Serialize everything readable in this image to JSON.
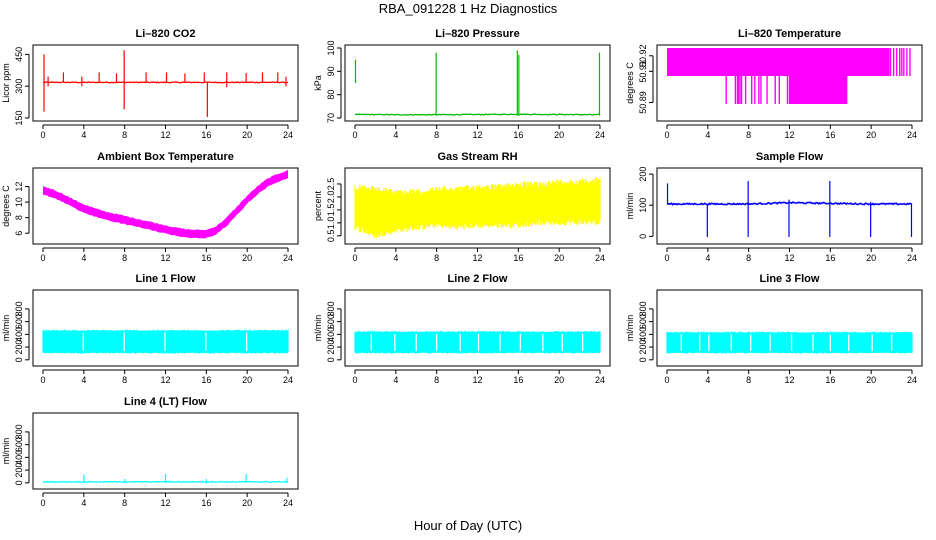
{
  "figure": {
    "title": "RBA_091228  1 Hz Diagnostics",
    "xlabel": "Hour of Day (UTC)"
  },
  "chart_data": [
    {
      "type": "line",
      "title": "Li–820 CO2",
      "ylabel": "Licor ppm",
      "color": "#ff0000",
      "xlim": [
        0,
        24
      ],
      "xticks": [
        "0",
        "4",
        "8",
        "12",
        "16",
        "20",
        "24"
      ],
      "ylim": [
        150,
        480
      ],
      "yticks": [
        {
          "value": 150,
          "label": "150"
        },
        {
          "value": 300,
          "label": "300"
        },
        {
          "value": 450,
          "label": "450"
        }
      ],
      "series": [
        {
          "x": [
            0,
            4,
            8,
            12,
            16,
            20,
            24
          ],
          "values": [
            318,
            318,
            318,
            318,
            318,
            318,
            318
          ]
        }
      ],
      "spikes": [
        {
          "x": 0.1,
          "low": 180,
          "high": 450
        },
        {
          "x": 7.95,
          "low": 190,
          "high": 470
        },
        {
          "x": 16.1,
          "low": 155,
          "high": 318
        },
        {
          "x": 0.5,
          "low": 300,
          "high": 345
        },
        {
          "x": 2.0,
          "low": 318,
          "high": 365
        },
        {
          "x": 3.8,
          "low": 300,
          "high": 345
        },
        {
          "x": 5.5,
          "low": 318,
          "high": 365
        },
        {
          "x": 7.2,
          "low": 318,
          "high": 360
        },
        {
          "x": 10.1,
          "low": 318,
          "high": 365
        },
        {
          "x": 12.1,
          "low": 318,
          "high": 365
        },
        {
          "x": 13.9,
          "low": 318,
          "high": 360
        },
        {
          "x": 15.8,
          "low": 318,
          "high": 365
        },
        {
          "x": 18.0,
          "low": 295,
          "high": 365
        },
        {
          "x": 19.9,
          "low": 318,
          "high": 362
        },
        {
          "x": 21.5,
          "low": 318,
          "high": 365
        },
        {
          "x": 23.0,
          "low": 318,
          "high": 365
        },
        {
          "x": 23.8,
          "low": 300,
          "high": 345
        }
      ]
    },
    {
      "type": "line",
      "title": "Li–820 Pressure",
      "ylabel": "kPa",
      "color": "#00bb00",
      "xlim": [
        0,
        24
      ],
      "xticks": [
        "0",
        "4",
        "8",
        "12",
        "16",
        "20",
        "24"
      ],
      "ylim": [
        70,
        100
      ],
      "yticks": [
        {
          "value": 70,
          "label": "70"
        },
        {
          "value": 80,
          "label": "80"
        },
        {
          "value": 90,
          "label": "90"
        },
        {
          "value": 100,
          "label": "100"
        }
      ],
      "series": [
        {
          "x": [
            0,
            4,
            8,
            12,
            16,
            20,
            24
          ],
          "values": [
            71.5,
            71.4,
            71.4,
            71.5,
            71.6,
            71.5,
            71.4
          ]
        }
      ],
      "spikes": [
        {
          "x": 0.05,
          "low": 85,
          "high": 95
        },
        {
          "x": 7.95,
          "low": 71,
          "high": 98
        },
        {
          "x": 15.9,
          "low": 71,
          "high": 99
        },
        {
          "x": 16.05,
          "low": 71,
          "high": 97
        },
        {
          "x": 23.95,
          "low": 71,
          "high": 98
        }
      ]
    },
    {
      "type": "area",
      "title": "Li–820 Temperature",
      "ylabel": "degrees C",
      "color": "#ff00ff",
      "xlim": [
        0,
        24
      ],
      "xticks": [
        "0",
        "4",
        "8",
        "12",
        "16",
        "20",
        "24"
      ],
      "ylim": [
        50.88,
        50.925
      ],
      "yticks": [
        {
          "value": 50.89,
          "label": "50.89"
        },
        {
          "value": 50.91,
          "label": "50.91"
        },
        {
          "value": 50.92,
          "label": "50.92"
        }
      ],
      "band": {
        "x": [
          0,
          21.8
        ],
        "low": 50.907,
        "high": 50.925
      },
      "dropouts": [
        5.8,
        6.7,
        6.9,
        7.0,
        7.15,
        7.3,
        7.7,
        8.3,
        8.6,
        9.0,
        9.2,
        9.8,
        10.6,
        11.0,
        11.8,
        12.0,
        12.1,
        12.3,
        12.5,
        12.8,
        13.0,
        13.3,
        13.5,
        14.0,
        14.5,
        15.0,
        15.5,
        16.0,
        16.5,
        17.0,
        17.6
      ],
      "lowband": {
        "x": [
          12.0,
          17.6
        ],
        "low": 50.889,
        "high": 50.907
      },
      "tail": [
        21.9,
        22.2,
        22.5,
        22.8,
        23.0,
        23.2,
        23.5,
        23.8
      ]
    },
    {
      "type": "area",
      "title": "Ambient Box Temperature",
      "ylabel": "degrees C",
      "color": "#ff00ff",
      "xlim": [
        0,
        24
      ],
      "xticks": [
        "0",
        "4",
        "8",
        "12",
        "16",
        "20",
        "24"
      ],
      "ylim": [
        5.0,
        14.0
      ],
      "yticks": [
        {
          "value": 6,
          "label": "6"
        },
        {
          "value": 8,
          "label": "8"
        },
        {
          "value": 10,
          "label": "10"
        },
        {
          "value": 12,
          "label": "12"
        }
      ],
      "series": [
        {
          "x": [
            0,
            1,
            2,
            3,
            4,
            5,
            6,
            7,
            8,
            9,
            10,
            11,
            12,
            13,
            14,
            15,
            16,
            17,
            18,
            19,
            20,
            21,
            22,
            23,
            24
          ],
          "values": [
            11.5,
            11.1,
            10.5,
            9.8,
            9.2,
            8.7,
            8.3,
            8.0,
            7.7,
            7.4,
            7.1,
            6.8,
            6.5,
            6.2,
            6.0,
            5.9,
            5.9,
            6.4,
            7.5,
            8.9,
            10.3,
            11.5,
            12.5,
            13.1,
            13.6
          ]
        }
      ],
      "band_halfwidth": 0.45
    },
    {
      "type": "area",
      "title": "Gas Stream RH",
      "ylabel": "percent",
      "color": "#ffff00",
      "xlim": [
        0,
        24
      ],
      "xticks": [
        "0",
        "4",
        "8",
        "12",
        "16",
        "20",
        "24"
      ],
      "ylim": [
        0.3,
        3.0
      ],
      "yticks": [
        {
          "value": 0.5,
          "label": "0.5"
        },
        {
          "value": 1.0,
          "label": "1.0"
        },
        {
          "value": 1.5,
          "label": "1.5"
        },
        {
          "value": 2.0,
          "label": "2.0"
        },
        {
          "value": 2.5,
          "label": "2.5"
        }
      ],
      "series": [
        {
          "x": [
            0,
            2,
            4,
            6,
            8,
            10,
            12,
            14,
            16,
            18,
            20,
            22,
            24
          ],
          "low": [
            0.7,
            0.4,
            0.6,
            0.7,
            0.8,
            0.7,
            0.8,
            0.8,
            0.8,
            0.9,
            0.9,
            0.9,
            0.9
          ],
          "high": [
            2.5,
            2.4,
            2.3,
            2.3,
            2.4,
            2.4,
            2.5,
            2.5,
            2.6,
            2.6,
            2.7,
            2.7,
            2.8
          ]
        }
      ]
    },
    {
      "type": "line",
      "title": "Sample Flow",
      "ylabel": "ml/min",
      "color": "#0000ff",
      "xlim": [
        0,
        24
      ],
      "xticks": [
        "0",
        "4",
        "8",
        "12",
        "16",
        "20",
        "24"
      ],
      "ylim": [
        -15,
        210
      ],
      "yticks": [
        {
          "value": 0,
          "label": "0"
        },
        {
          "value": 100,
          "label": "100"
        },
        {
          "value": 200,
          "label": "200"
        }
      ],
      "series": [
        {
          "x": [
            0,
            4,
            8,
            12,
            16,
            20,
            24
          ],
          "values": [
            104,
            104,
            104,
            108,
            106,
            104,
            104
          ]
        }
      ],
      "spikes": [
        {
          "x": 0.05,
          "low": 104,
          "high": 170
        },
        {
          "x": 3.95,
          "low": -2,
          "high": 104
        },
        {
          "x": 7.95,
          "low": -2,
          "high": 178
        },
        {
          "x": 11.95,
          "low": -2,
          "high": 118
        },
        {
          "x": 15.95,
          "low": -2,
          "high": 178
        },
        {
          "x": 19.95,
          "low": -2,
          "high": 110
        },
        {
          "x": 23.95,
          "low": -2,
          "high": 104
        }
      ]
    },
    {
      "type": "area",
      "title": "Line 1 Flow",
      "ylabel": "ml/min",
      "color": "#00ffff",
      "xlim": [
        0,
        24
      ],
      "xticks": [
        "0",
        "4",
        "8",
        "12",
        "16",
        "20",
        "24"
      ],
      "ylim": [
        -50,
        1050
      ],
      "yticks": [
        {
          "value": 0,
          "label": "0"
        },
        {
          "value": 200,
          "label": "200"
        },
        {
          "value": 400,
          "label": "400"
        },
        {
          "value": 600,
          "label": "600"
        },
        {
          "value": 800,
          "label": "800"
        }
      ],
      "band": {
        "x": [
          0,
          24
        ],
        "low": 110,
        "high": 460
      },
      "gaps": [
        3.95,
        7.95,
        11.95,
        15.95,
        19.95
      ]
    },
    {
      "type": "area",
      "title": "Line 2 Flow",
      "ylabel": "ml/min",
      "color": "#00ffff",
      "xlim": [
        0,
        24
      ],
      "xticks": [
        "0",
        "4",
        "8",
        "12",
        "16",
        "20",
        "24"
      ],
      "ylim": [
        -50,
        1050
      ],
      "yticks": [
        {
          "value": 0,
          "label": "0"
        },
        {
          "value": 200,
          "label": "200"
        },
        {
          "value": 400,
          "label": "400"
        },
        {
          "value": 600,
          "label": "600"
        },
        {
          "value": 800,
          "label": "800"
        }
      ],
      "band": {
        "x": [
          0,
          24
        ],
        "low": 110,
        "high": 440
      },
      "gaps": [
        1.6,
        3.9,
        6.0,
        8.0,
        10.3,
        12.1,
        14.2,
        16.2,
        18.4,
        20.3,
        22.3
      ]
    },
    {
      "type": "area",
      "title": "Line 3 Flow",
      "ylabel": "ml/min",
      "color": "#00ffff",
      "xlim": [
        0,
        24
      ],
      "xticks": [
        "0",
        "4",
        "8",
        "12",
        "16",
        "20",
        "24"
      ],
      "ylim": [
        -50,
        1050
      ],
      "yticks": [
        {
          "value": 0,
          "label": "0"
        },
        {
          "value": 200,
          "label": "200"
        },
        {
          "value": 400,
          "label": "400"
        },
        {
          "value": 600,
          "label": "600"
        },
        {
          "value": 800,
          "label": "800"
        }
      ],
      "band": {
        "x": [
          0,
          24
        ],
        "low": 110,
        "high": 430
      },
      "gaps": [
        1.4,
        3.2,
        4.1,
        6.3,
        8.2,
        10.1,
        12.2,
        14.3,
        16.0,
        17.8,
        20.1,
        22.0
      ]
    },
    {
      "type": "line",
      "title": "Line 4 (LT) Flow",
      "ylabel": "ml/min",
      "color": "#00ffff",
      "xlim": [
        0,
        24
      ],
      "xticks": [
        "0",
        "4",
        "8",
        "12",
        "16",
        "20",
        "24"
      ],
      "ylim": [
        -50,
        1050
      ],
      "yticks": [
        {
          "value": 0,
          "label": "0"
        },
        {
          "value": 200,
          "label": "200"
        },
        {
          "value": 400,
          "label": "400"
        },
        {
          "value": 600,
          "label": "600"
        },
        {
          "value": 800,
          "label": "800"
        }
      ],
      "series": [
        {
          "x": [
            0,
            4,
            8,
            12,
            16,
            20,
            24
          ],
          "values": [
            15,
            15,
            15,
            15,
            15,
            15,
            15
          ]
        }
      ],
      "spikes": [
        {
          "x": 4.0,
          "low": 5,
          "high": 130
        },
        {
          "x": 8.0,
          "low": 5,
          "high": 60
        },
        {
          "x": 12.0,
          "low": 5,
          "high": 140
        },
        {
          "x": 16.0,
          "low": -10,
          "high": 60
        },
        {
          "x": 19.9,
          "low": 5,
          "high": 135
        },
        {
          "x": 23.9,
          "low": 5,
          "high": 80
        }
      ]
    }
  ]
}
